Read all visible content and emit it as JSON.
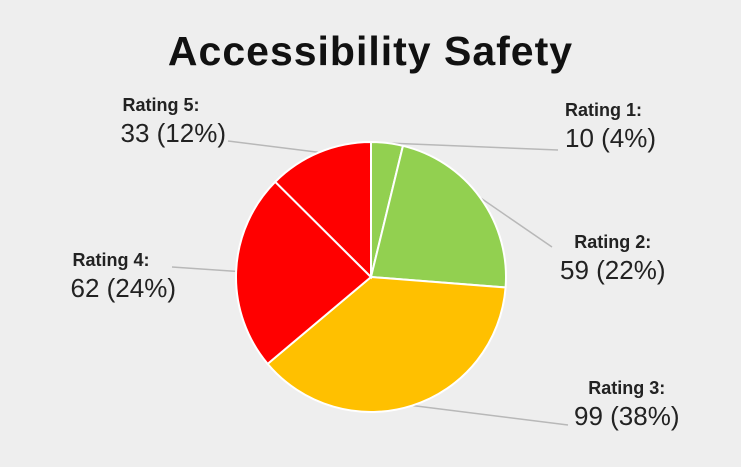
{
  "chart_data": {
    "type": "pie",
    "title": "Accessibility Safety",
    "slices": [
      {
        "label": "Rating 1:",
        "value": 10,
        "value_text": "10 (4%)",
        "color": "#92d050"
      },
      {
        "label": "Rating 2:",
        "value": 59,
        "value_text": "59 (22%)",
        "color": "#92d050"
      },
      {
        "label": "Rating 3:",
        "value": 99,
        "value_text": "99 (38%)",
        "color": "#ffc000"
      },
      {
        "label": "Rating 4:",
        "value": 62,
        "value_text": "62 (24%)",
        "color": "#ff0000"
      },
      {
        "label": "Rating 5:",
        "value": 33,
        "value_text": "33 (12%)",
        "color": "#ff0000"
      }
    ],
    "legend": "none"
  }
}
